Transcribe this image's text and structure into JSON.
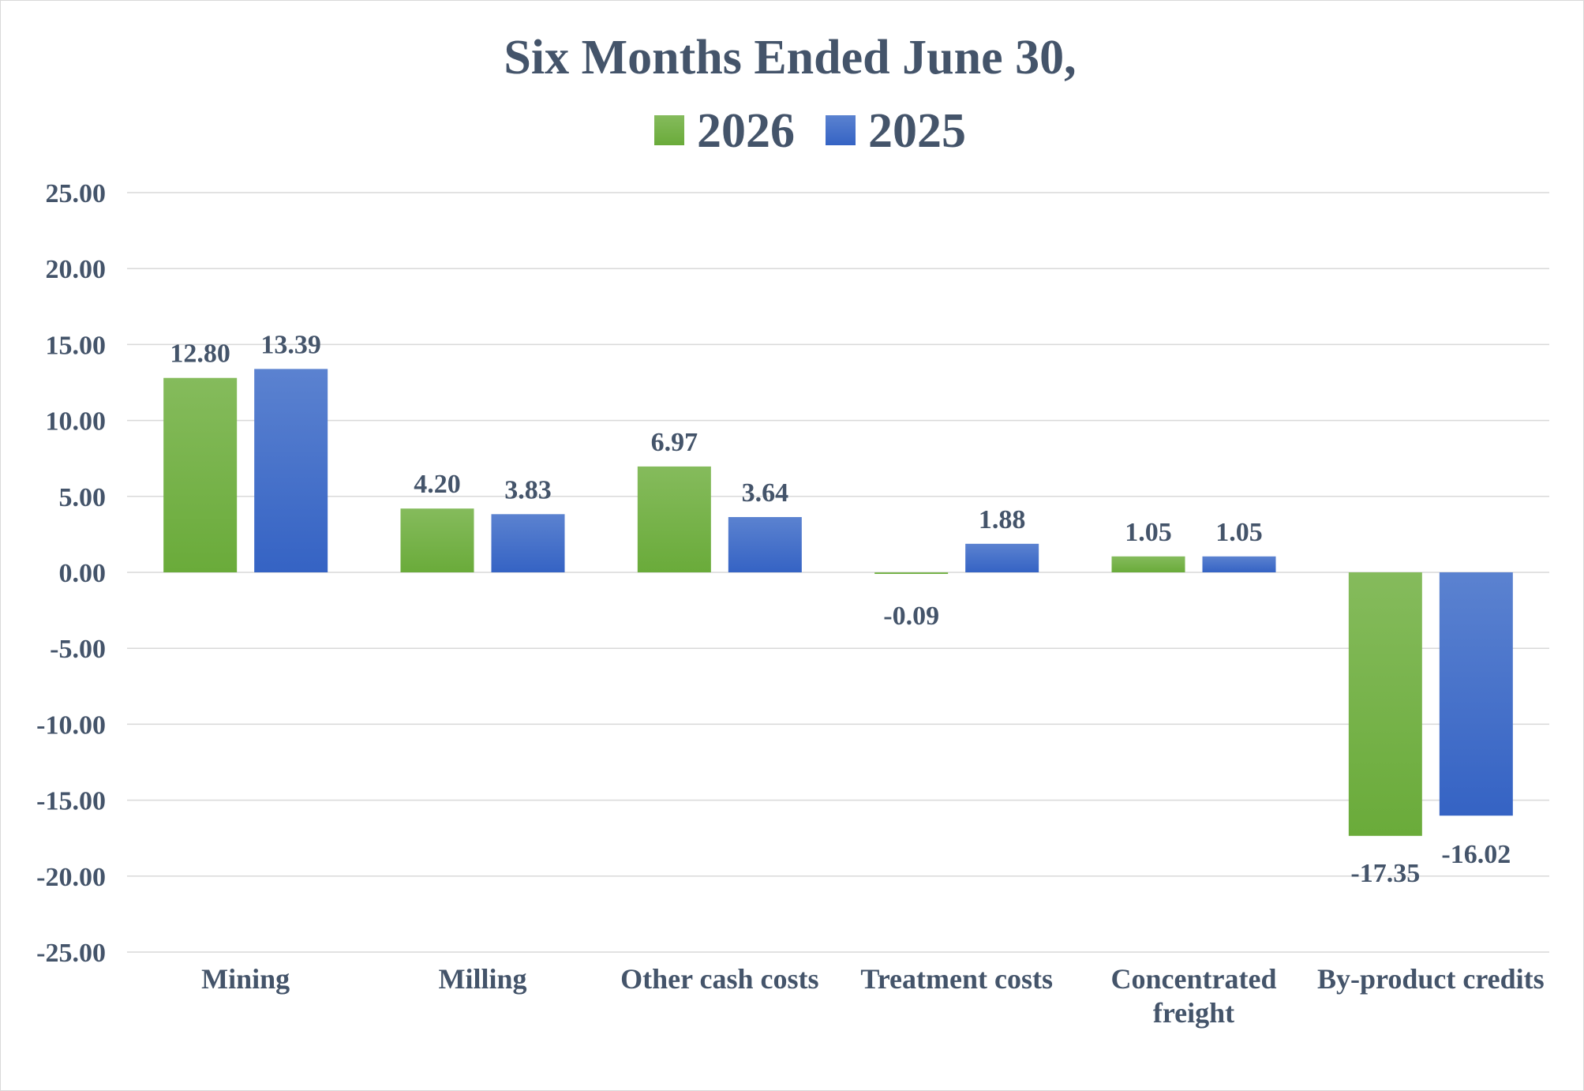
{
  "chart_data": {
    "type": "bar",
    "title": "Six Months Ended June 30,",
    "categories": [
      [
        "Mining"
      ],
      [
        "Milling"
      ],
      [
        "Other cash costs"
      ],
      [
        "Treatment costs"
      ],
      [
        "Concentrated",
        "freight"
      ],
      [
        "By-product credits"
      ]
    ],
    "series": [
      {
        "name": "2026",
        "color": "#6aab3a",
        "color_light": "#85bb5c",
        "values": [
          12.8,
          4.2,
          6.97,
          -0.09,
          1.05,
          -17.35
        ],
        "labels": [
          "12.80",
          "4.20",
          "6.97",
          "-0.09",
          "1.05",
          "-17.35"
        ]
      },
      {
        "name": "2025",
        "color": "#3563c4",
        "color_light": "#5b82d0",
        "values": [
          13.39,
          3.83,
          3.64,
          1.88,
          1.05,
          -16.02
        ],
        "labels": [
          "13.39",
          "3.83",
          "3.64",
          "1.88",
          "1.05",
          "-16.02"
        ]
      }
    ],
    "ylim": [
      -25,
      25
    ],
    "yticks": [
      25,
      20,
      15,
      10,
      5,
      0,
      -5,
      -10,
      -15,
      -20,
      -25
    ],
    "ytick_labels": [
      "25.00",
      "20.00",
      "15.00",
      "10.00",
      "5.00",
      "0.00",
      "-5.00",
      "-10.00",
      "-15.00",
      "-20.00",
      "-25.00"
    ],
    "xlabel": "",
    "ylabel": "",
    "grid": true,
    "legend_position": "top-center",
    "text_color": "#44546a",
    "grid_color": "#d9d9d9"
  }
}
